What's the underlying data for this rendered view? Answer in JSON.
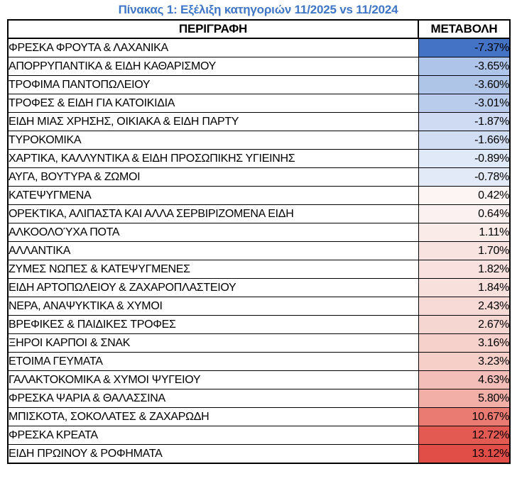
{
  "title": "Πίνακας 1: Εξέλιξη κατηγοριών 11/2025 vs 11/2024",
  "colors": {
    "title_text": "#4076C6",
    "table_border": "#000000",
    "scale_negative_max": "#4472C4",
    "scale_midpoint": "#FFFFFF",
    "scale_positive_max": "#E14E48"
  },
  "table": {
    "columns": [
      "ΠΕΡΙΓΡΑΦΗ",
      "ΜΕΤΑΒΟΛΗ"
    ],
    "rows": [
      {
        "label": "ΦΡΕΣΚΑ ΦΡΟΥΤΑ & ΛΑΧΑΝΙΚΑ",
        "value": "-7.37%",
        "bg": "#4472C4"
      },
      {
        "label": "ΑΠΟΡΡΥΠΑΝΤΙΚΑ & ΕΙΔΗ ΚΑΘΑΡΙΣΜΟΥ",
        "value": "-3.65%",
        "bg": "#AEC4E8"
      },
      {
        "label": "ΤΡΟΦΙΜΑ ΠΑΝΤΟΠΩΛΕΙΟΥ",
        "value": "-3.60%",
        "bg": "#AFC5E8"
      },
      {
        "label": "ΤΡΟΦΕΣ & ΕΙΔΗ ΓΙΑ ΚΑΤΟΙΚΙΔΙΑ",
        "value": "-3.01%",
        "bg": "#B9CCEB"
      },
      {
        "label": "ΕΙΔΗ ΜΙΑΣ ΧΡΗΣΗΣ, ΟΙΚΙΑΚΑ & ΕΙΔΗ ΠΑΡΤΥ",
        "value": "-1.87%",
        "bg": "#CEDBF2"
      },
      {
        "label": "ΤΥΡΟΚΟΜΙΚΑ",
        "value": "-1.66%",
        "bg": "#D1DDF3"
      },
      {
        "label": "ΧΑΡΤΙΚΑ, ΚΑΛΛΥΝΤΙΚΑ & ΕΙΔΗ ΠΡΟΣΩΠΙΚΗΣ ΥΓΙΕΙΝΗΣ",
        "value": "-0.89%",
        "bg": "#E0E9F7"
      },
      {
        "label": "ΑΥΓΑ, ΒΟΥΤΥΡΑ & ΖΩΜΟΙ",
        "value": "-0.78%",
        "bg": "#E2EAF8"
      },
      {
        "label": "ΚΑΤΕΨΥΓΜΕΝΑ",
        "value": "0.42%",
        "bg": "#FCF5F4"
      },
      {
        "label": "ΟΡΕΚΤΙΚΑ, ΑΛΙΠΑΣΤΑ ΚΑΙ ΑΛΛΑ ΣΕΡΒΙΡΙΖΟΜΕΝΑ ΕΙΔΗ",
        "value": "0.64%",
        "bg": "#FBF1F0"
      },
      {
        "label": "ΑΛΚΟΟΛΟΎΧΑ ΠΟΤΑ",
        "value": "1.11%",
        "bg": "#FAEBE9"
      },
      {
        "label": "ΑΛΛΑΝΤΙΚΑ",
        "value": "1.70%",
        "bg": "#F9E3E0"
      },
      {
        "label": "ΖΥΜΕΣ ΝΩΠΕΣ & ΚΑΤΕΨΥΓΜΕΝΕΣ",
        "value": "1.82%",
        "bg": "#F8E1DE"
      },
      {
        "label": "ΕΙΔΗ ΑΡΤΟΠΩΛΕΙΟΥ & ΖΑΧΑΡΟΠΛΑΣΤΕΙΟΥ",
        "value": "1.84%",
        "bg": "#F8E0DD"
      },
      {
        "label": "ΝΕΡΑ, ΑΝΑΨΥΚΤΙΚΑ & ΧΥΜΟΙ",
        "value": "2.43%",
        "bg": "#F7D9D5"
      },
      {
        "label": "ΒΡΕΦΙΚΕΣ & ΠΑΙΔΙΚΕΣ ΤΡΟΦΕΣ",
        "value": "2.67%",
        "bg": "#F6D6D1"
      },
      {
        "label": "ΞΗΡΟΙ ΚΑΡΠΟΙ & ΣΝΑΚ",
        "value": "3.16%",
        "bg": "#F6D0CA"
      },
      {
        "label": "ΕΤΟΙΜΑ ΓΕΥΜΑΤΑ",
        "value": "3.23%",
        "bg": "#F6CFC9"
      },
      {
        "label": "ΓΑΛΑΚΤΟΚΟΜΙΚΑ & ΧΥΜΟΙ ΨΥΓΕΙΟΥ",
        "value": "4.63%",
        "bg": "#F3BEB7"
      },
      {
        "label": "ΦΡΕΣΚΑ ΨΑΡΙΑ & ΘΑΛΑΣΣΙΝΑ",
        "value": "5.80%",
        "bg": "#F1AFA8"
      },
      {
        "label": "ΜΠΙΣΚΟΤΑ, ΣΟΚΟΛΑΤΕΣ & ΖΑΧΑΡΩΔΗ",
        "value": "10.67%",
        "bg": "#EA7B72"
      },
      {
        "label": "ΦΡΕΣΚΑ ΚΡΕΑΤΑ",
        "value": "12.72%",
        "bg": "#E35A52"
      },
      {
        "label": "ΕΙΔΗ ΠΡΩΙΝΟΥ & ΡΟΦΗΜΑΤΑ",
        "value": "13.12%",
        "bg": "#E14E48"
      }
    ]
  },
  "chart_data": {
    "type": "table",
    "title": "Πίνακας 1: Εξέλιξη κατηγοριών 11/2025 vs 11/2024",
    "columns": [
      "ΠΕΡΙΓΡΑΦΗ",
      "ΜΕΤΑΒΟΛΗ"
    ],
    "categories": [
      "ΦΡΕΣΚΑ ΦΡΟΥΤΑ & ΛΑΧΑΝΙΚΑ",
      "ΑΠΟΡΡΥΠΑΝΤΙΚΑ & ΕΙΔΗ ΚΑΘΑΡΙΣΜΟΥ",
      "ΤΡΟΦΙΜΑ ΠΑΝΤΟΠΩΛΕΙΟΥ",
      "ΤΡΟΦΕΣ & ΕΙΔΗ ΓΙΑ ΚΑΤΟΙΚΙΔΙΑ",
      "ΕΙΔΗ ΜΙΑΣ ΧΡΗΣΗΣ, ΟΙΚΙΑΚΑ & ΕΙΔΗ ΠΑΡΤΥ",
      "ΤΥΡΟΚΟΜΙΚΑ",
      "ΧΑΡΤΙΚΑ, ΚΑΛΛΥΝΤΙΚΑ & ΕΙΔΗ ΠΡΟΣΩΠΙΚΗΣ ΥΓΙΕΙΝΗΣ",
      "ΑΥΓΑ, ΒΟΥΤΥΡΑ & ΖΩΜΟΙ",
      "ΚΑΤΕΨΥΓΜΕΝΑ",
      "ΟΡΕΚΤΙΚΑ, ΑΛΙΠΑΣΤΑ ΚΑΙ ΑΛΛΑ ΣΕΡΒΙΡΙΖΟΜΕΝΑ ΕΙΔΗ",
      "ΑΛΚΟΟΛΟΎΧΑ ΠΟΤΑ",
      "ΑΛΛΑΝΤΙΚΑ",
      "ΖΥΜΕΣ ΝΩΠΕΣ & ΚΑΤΕΨΥΓΜΕΝΕΣ",
      "ΕΙΔΗ ΑΡΤΟΠΩΛΕΙΟΥ & ΖΑΧΑΡΟΠΛΑΣΤΕΙΟΥ",
      "ΝΕΡΑ, ΑΝΑΨΥΚΤΙΚΑ & ΧΥΜΟΙ",
      "ΒΡΕΦΙΚΕΣ & ΠΑΙΔΙΚΕΣ ΤΡΟΦΕΣ",
      "ΞΗΡΟΙ ΚΑΡΠΟΙ & ΣΝΑΚ",
      "ΕΤΟΙΜΑ ΓΕΥΜΑΤΑ",
      "ΓΑΛΑΚΤΟΚΟΜΙΚΑ & ΧΥΜΟΙ ΨΥΓΕΙΟΥ",
      "ΦΡΕΣΚΑ ΨΑΡΙΑ & ΘΑΛΑΣΣΙΝΑ",
      "ΜΠΙΣΚΟΤΑ, ΣΟΚΟΛΑΤΕΣ & ΖΑΧΑΡΩΔΗ",
      "ΦΡΕΣΚΑ ΚΡΕΑΤΑ",
      "ΕΙΔΗ ΠΡΩΙΝΟΥ & ΡΟΦΗΜΑΤΑ"
    ],
    "values": [
      -7.37,
      -3.65,
      -3.6,
      -3.01,
      -1.87,
      -1.66,
      -0.89,
      -0.78,
      0.42,
      0.64,
      1.11,
      1.7,
      1.82,
      1.84,
      2.43,
      2.67,
      3.16,
      3.23,
      4.63,
      5.8,
      10.67,
      12.72,
      13.12
    ],
    "value_format": "percent",
    "color_scale": {
      "min_color": "#4472C4",
      "mid_color": "#FFFFFF",
      "max_color": "#E14E48",
      "midpoint_value": 0
    }
  }
}
